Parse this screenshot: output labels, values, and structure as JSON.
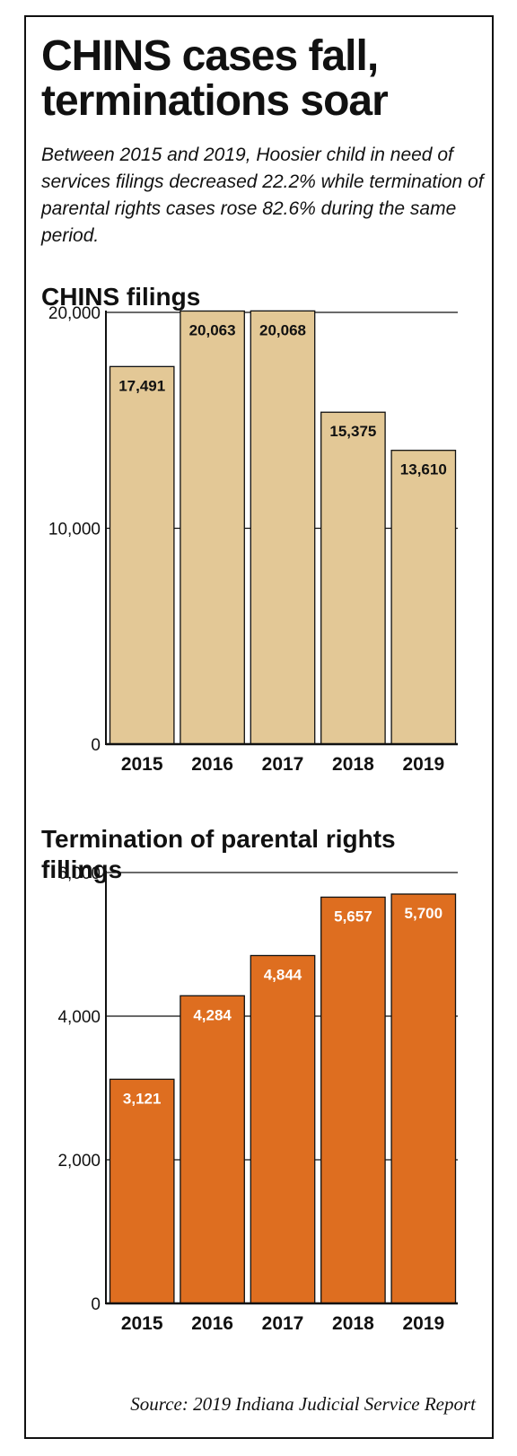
{
  "headline": "CHINS cases fall, terminations soar",
  "dek": "Between 2015 and 2019, Hoosier child in need of services filings decreased 22.2% while termination of parental rights cases rose 82.6% during the same period.",
  "source": "Source: 2019 Indiana Judicial Service Report",
  "chart_data": [
    {
      "type": "bar",
      "title": "CHINS filings",
      "categories": [
        "2015",
        "2016",
        "2017",
        "2018",
        "2019"
      ],
      "values": [
        17491,
        20063,
        20068,
        15375,
        13610
      ],
      "value_labels": [
        "17,491",
        "20,063",
        "20,068",
        "15,375",
        "13,610"
      ],
      "yticks": [
        0,
        10000,
        20000
      ],
      "ytick_labels": [
        "0",
        "10,000",
        "20,000"
      ],
      "ylim": [
        0,
        20000
      ],
      "grid": true,
      "bar_color": "#e3c896",
      "label_color": "#111111"
    },
    {
      "type": "bar",
      "title": "Termination of parental rights fillings",
      "categories": [
        "2015",
        "2016",
        "2017",
        "2018",
        "2019"
      ],
      "values": [
        3121,
        4284,
        4844,
        5657,
        5700
      ],
      "value_labels": [
        "3,121",
        "4,284",
        "4,844",
        "5,657",
        "5,700"
      ],
      "yticks": [
        0,
        2000,
        4000,
        6000
      ],
      "ytick_labels": [
        "0",
        "2,000",
        "4,000",
        "6,000"
      ],
      "ylim": [
        0,
        6000
      ],
      "grid": true,
      "bar_color": "#de6e20",
      "label_color": "#ffffff"
    }
  ]
}
